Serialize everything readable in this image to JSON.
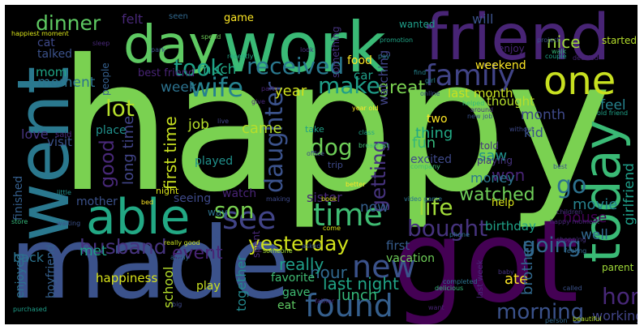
{
  "words": [
    {
      "text": "happy",
      "color": "#7ad151"
    },
    {
      "text": "work",
      "color": "#3aba76"
    },
    {
      "text": "made",
      "color": "#3b528b"
    },
    {
      "text": "got",
      "color": "#440154"
    },
    {
      "text": "friend",
      "color": "#482475"
    },
    {
      "text": "day",
      "color": "#5ec962"
    },
    {
      "text": "went",
      "color": "#2a788e"
    },
    {
      "text": "one",
      "color": "#c8e020"
    },
    {
      "text": "able",
      "color": "#22a884"
    },
    {
      "text": "today",
      "color": "#3aba76"
    },
    {
      "text": "family",
      "color": "#414487"
    },
    {
      "text": "time",
      "color": "#3fbc73"
    },
    {
      "text": "found",
      "color": "#355f8d"
    },
    {
      "text": "new",
      "color": "#3b528b"
    },
    {
      "text": "see",
      "color": "#414487"
    },
    {
      "text": "yesterday",
      "color": "#d0e11c"
    },
    {
      "text": "bought",
      "color": "#46337e"
    },
    {
      "text": "life",
      "color": "#a0da39"
    },
    {
      "text": "wife",
      "color": "#26828e"
    },
    {
      "text": "make",
      "color": "#1f9e89"
    },
    {
      "text": "took",
      "color": "#1fa187"
    },
    {
      "text": "received",
      "color": "#2a788e"
    },
    {
      "text": "dinner",
      "color": "#5ec962"
    },
    {
      "text": "lot",
      "color": "#b5de2b"
    },
    {
      "text": "dog",
      "color": "#6ece58"
    },
    {
      "text": "son",
      "color": "#7ad151"
    },
    {
      "text": "husband",
      "color": "#46337e"
    },
    {
      "text": "going",
      "color": "#31688e"
    },
    {
      "text": "morning",
      "color": "#3b528b"
    },
    {
      "text": "home",
      "color": "#482878"
    },
    {
      "text": "daughter",
      "color": "#3b528b"
    },
    {
      "text": "good",
      "color": "#482878"
    },
    {
      "text": "getting",
      "color": "#46337e"
    },
    {
      "text": "watched",
      "color": "#6ece58"
    },
    {
      "text": "go",
      "color": "#2c728e"
    },
    {
      "text": "first time",
      "color": "#c8e020"
    },
    {
      "text": "long time",
      "color": "#414487"
    },
    {
      "text": "event",
      "color": "#482475"
    },
    {
      "text": "finished",
      "color": "#355f8d"
    },
    {
      "text": "enjoyed",
      "color": "#2c728e"
    },
    {
      "text": "last night",
      "color": "#20a486"
    },
    {
      "text": "happiness",
      "color": "#d8e219"
    },
    {
      "text": "hour",
      "color": "#31688e"
    },
    {
      "text": "really",
      "color": "#1f9e89"
    },
    {
      "text": "school",
      "color": "#b5de2b"
    },
    {
      "text": "together",
      "color": "#23898e"
    },
    {
      "text": "lunch",
      "color": "#35b779"
    },
    {
      "text": "ate",
      "color": "#fde725"
    },
    {
      "text": "brother",
      "color": "#31688e"
    },
    {
      "text": "working",
      "color": "#414487"
    },
    {
      "text": "girlfriend",
      "color": "#1f9e89"
    },
    {
      "text": "well",
      "color": "#31688e"
    },
    {
      "text": "house",
      "color": "#440154"
    },
    {
      "text": "movie",
      "color": "#26828e"
    },
    {
      "text": "birthday",
      "color": "#1fa187"
    },
    {
      "text": "first",
      "color": "#365c8d"
    },
    {
      "text": "sister",
      "color": "#482878"
    },
    {
      "text": "met",
      "color": "#1fa187"
    },
    {
      "text": "back",
      "color": "#2c728e"
    },
    {
      "text": "visit",
      "color": "#3b528b"
    },
    {
      "text": "mother",
      "color": "#3b528b"
    },
    {
      "text": "now",
      "color": "#355f8d"
    },
    {
      "text": "won",
      "color": "#482475"
    },
    {
      "text": "saw",
      "color": "#21918c"
    },
    {
      "text": "money",
      "color": "#2a788e"
    },
    {
      "text": "kid",
      "color": "#3b528b"
    },
    {
      "text": "thing",
      "color": "#22a884"
    },
    {
      "text": "fun",
      "color": "#35b779"
    },
    {
      "text": "month",
      "color": "#3e4989"
    },
    {
      "text": "feel",
      "color": "#26828e"
    },
    {
      "text": "great",
      "color": "#7ad151"
    },
    {
      "text": "year",
      "color": "#d0e11c"
    },
    {
      "text": "week",
      "color": "#2c728e"
    },
    {
      "text": "moment",
      "color": "#2c728e"
    },
    {
      "text": "mom",
      "color": "#20a486"
    },
    {
      "text": "love",
      "color": "#46337e"
    },
    {
      "text": "much",
      "color": "#22a884"
    },
    {
      "text": "nice",
      "color": "#9fda3a"
    },
    {
      "text": "felt",
      "color": "#482878"
    },
    {
      "text": "will",
      "color": "#3b528b"
    },
    {
      "text": "cat",
      "color": "#3e4989"
    },
    {
      "text": "talked",
      "color": "#3b528b"
    },
    {
      "text": "best friend",
      "color": "#482475"
    },
    {
      "text": "weekend",
      "color": "#fde725"
    },
    {
      "text": "food",
      "color": "#fde725"
    },
    {
      "text": "last month",
      "color": "#c8e020"
    },
    {
      "text": "thought",
      "color": "#b5de2b"
    },
    {
      "text": "came",
      "color": "#b5de2b"
    },
    {
      "text": "job",
      "color": "#b5de2b"
    },
    {
      "text": "place",
      "color": "#21918c"
    },
    {
      "text": "played",
      "color": "#21918c"
    },
    {
      "text": "seeing",
      "color": "#3e4989"
    },
    {
      "text": "watch",
      "color": "#482475"
    },
    {
      "text": "play",
      "color": "#c8e020"
    },
    {
      "text": "gave",
      "color": "#3fbc73"
    },
    {
      "text": "eat",
      "color": "#5ec962"
    },
    {
      "text": "boyfriend",
      "color": "#355f8d"
    },
    {
      "text": "vacation",
      "color": "#6ece58"
    },
    {
      "text": "favorite",
      "color": "#3fbc73"
    },
    {
      "text": "car",
      "color": "#1f9e89"
    },
    {
      "text": "watching",
      "color": "#414487"
    },
    {
      "text": "game",
      "color": "#fde725"
    },
    {
      "text": "two",
      "color": "#fde725"
    },
    {
      "text": "excited",
      "color": "#3e4989"
    },
    {
      "text": "told",
      "color": "#46337e"
    },
    {
      "text": "playing",
      "color": "#46337e"
    },
    {
      "text": "help",
      "color": "#d8e219"
    },
    {
      "text": "parent",
      "color": "#a0da39"
    },
    {
      "text": "enjoy",
      "color": "#482475"
    },
    {
      "text": "wanted",
      "color": "#1f9e89"
    },
    {
      "text": "started",
      "color": "#b5de2b"
    },
    {
      "text": "something",
      "color": "#46337e"
    },
    {
      "text": "people",
      "color": "#355f8d"
    },
    {
      "text": "seen",
      "color": "#31688e"
    },
    {
      "text": "happiest moment",
      "color": "#d8e219"
    },
    {
      "text": "find",
      "color": "#26828e"
    },
    {
      "text": "night",
      "color": "#d8e219"
    },
    {
      "text": "trip",
      "color": "#3e4989"
    },
    {
      "text": "take",
      "color": "#1fa187"
    },
    {
      "text": "said",
      "color": "#482878"
    },
    {
      "text": "spent",
      "color": "#482878"
    },
    {
      "text": "old friend",
      "color": "#1fa187"
    },
    {
      "text": "year old",
      "color": "#fde725"
    },
    {
      "text": "video game",
      "color": "#2c728e"
    },
    {
      "text": "children",
      "color": "#46337e"
    },
    {
      "text": "shopping",
      "color": "#46337e"
    },
    {
      "text": "baby",
      "color": "#46337e"
    },
    {
      "text": "last week",
      "color": "#482878"
    },
    {
      "text": "called",
      "color": "#3b528b"
    },
    {
      "text": "beautiful",
      "color": "#b5de2b"
    },
    {
      "text": "person",
      "color": "#31688e"
    },
    {
      "text": "delicious",
      "color": "#35b779"
    },
    {
      "text": "want",
      "color": "#482475"
    },
    {
      "text": "really good",
      "color": "#c8e020"
    },
    {
      "text": "bed",
      "color": "#fde725"
    },
    {
      "text": "store",
      "color": "#35b779"
    },
    {
      "text": "waiting",
      "color": "#3b528b"
    },
    {
      "text": "little",
      "color": "#21918c"
    },
    {
      "text": "purchased",
      "color": "#1f9e89"
    },
    {
      "text": "big",
      "color": "#3e4989"
    },
    {
      "text": "sleep",
      "color": "#482878"
    },
    {
      "text": "spend",
      "color": "#6ece58"
    },
    {
      "text": "park",
      "color": "#3b528b"
    },
    {
      "text": "give",
      "color": "#482878"
    },
    {
      "text": "party",
      "color": "#482475"
    },
    {
      "text": "look",
      "color": "#46337e"
    },
    {
      "text": "online",
      "color": "#3b528b"
    },
    {
      "text": "girl",
      "color": "#26828e"
    },
    {
      "text": "project",
      "color": "#3b528b"
    },
    {
      "text": "walk",
      "color": "#35b779"
    },
    {
      "text": "couple",
      "color": "#1fa187"
    },
    {
      "text": "decided",
      "color": "#482475"
    },
    {
      "text": "promotion",
      "color": "#20a486"
    },
    {
      "text": "pay",
      "color": "#26828e"
    },
    {
      "text": "recently",
      "color": "#22a884"
    },
    {
      "text": "helped",
      "color": "#35b779"
    },
    {
      "text": "around",
      "color": "#46337e"
    },
    {
      "text": "new job",
      "color": "#3b528b"
    },
    {
      "text": "class",
      "color": "#20a486"
    },
    {
      "text": "breakfast",
      "color": "#3fbc73"
    },
    {
      "text": "company",
      "color": "#3fbc73"
    },
    {
      "text": "office",
      "color": "#3e4989"
    },
    {
      "text": "better",
      "color": "#fde725"
    },
    {
      "text": "book",
      "color": "#d8e219"
    },
    {
      "text": "making",
      "color": "#3e4989"
    },
    {
      "text": "come",
      "color": "#d8e219"
    },
    {
      "text": "asked",
      "color": "#3b528b"
    },
    {
      "text": "father",
      "color": "#482878"
    },
    {
      "text": "someone",
      "color": "#a0da39"
    },
    {
      "text": "phone",
      "color": "#2c728e"
    },
    {
      "text": "happy moment",
      "color": "#482878"
    },
    {
      "text": "feeling",
      "color": "#31688e"
    },
    {
      "text": "best",
      "color": "#3b528b"
    },
    {
      "text": "without",
      "color": "#3e4989"
    },
    {
      "text": "completed",
      "color": "#2c728e"
    },
    {
      "text": "alway",
      "color": "#31688e"
    },
    {
      "text": "u",
      "color": "#3b528b"
    },
    {
      "text": "live",
      "color": "#414487"
    },
    {
      "text": "way",
      "color": "#2c728e"
    }
  ]
}
